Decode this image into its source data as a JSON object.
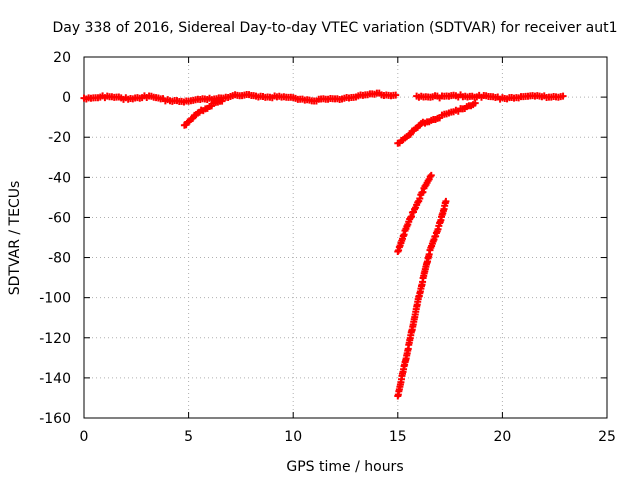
{
  "chart_data": {
    "type": "scatter",
    "title": "Day 338 of 2016, Sidereal Day-to-day VTEC variation (SDTVAR) for receiver aut1",
    "xlabel": "GPS time / hours",
    "ylabel": "SDTVAR / TECUs",
    "xlim": [
      0,
      25
    ],
    "ylim": [
      -160,
      20
    ],
    "xticks": [
      0,
      5,
      10,
      15,
      20,
      25
    ],
    "yticks": [
      20,
      0,
      -20,
      -40,
      -60,
      -80,
      -100,
      -120,
      -140,
      -160
    ],
    "grid": true,
    "legend": "none",
    "marker": "plus",
    "color": "#ff0000",
    "series": [
      {
        "points": [
          [
            0,
            -0.5
          ],
          [
            1,
            0.3
          ],
          [
            2,
            -0.8
          ],
          [
            3,
            0.2
          ],
          [
            4,
            -1.5
          ],
          [
            5,
            -2
          ],
          [
            6,
            -1
          ],
          [
            7,
            0.5
          ],
          [
            8,
            0.8
          ],
          [
            9,
            0.2
          ],
          [
            10,
            -0.3
          ],
          [
            11,
            -1.5
          ],
          [
            12,
            -1
          ],
          [
            13,
            0.5
          ],
          [
            14,
            1.5
          ],
          [
            14.9,
            1
          ]
        ]
      },
      {
        "points": [
          [
            4.8,
            -14
          ],
          [
            5.2,
            -10
          ],
          [
            5.6,
            -7
          ],
          [
            6.1,
            -4
          ],
          [
            6.6,
            -2
          ]
        ]
      },
      {
        "points": [
          [
            15.9,
            0.5
          ],
          [
            17,
            0.2
          ],
          [
            18,
            0.6
          ],
          [
            19,
            0.3
          ],
          [
            20,
            -0.5
          ],
          [
            21,
            0.3
          ],
          [
            22,
            0.2
          ],
          [
            22.9,
            0.5
          ]
        ]
      },
      {
        "points": [
          [
            15,
            -23
          ],
          [
            15.6,
            -18
          ],
          [
            16.2,
            -13
          ],
          [
            17,
            -10
          ],
          [
            18,
            -6
          ],
          [
            18.7,
            -3
          ]
        ]
      },
      {
        "points": [
          [
            15,
            -77
          ],
          [
            15.3,
            -68
          ],
          [
            15.7,
            -58
          ],
          [
            16.2,
            -47
          ],
          [
            16.6,
            -39
          ]
        ]
      },
      {
        "points": [
          [
            15,
            -149
          ],
          [
            15.5,
            -125
          ],
          [
            16,
            -100
          ],
          [
            16.5,
            -78
          ],
          [
            17,
            -63
          ],
          [
            17.3,
            -52
          ]
        ]
      }
    ]
  }
}
